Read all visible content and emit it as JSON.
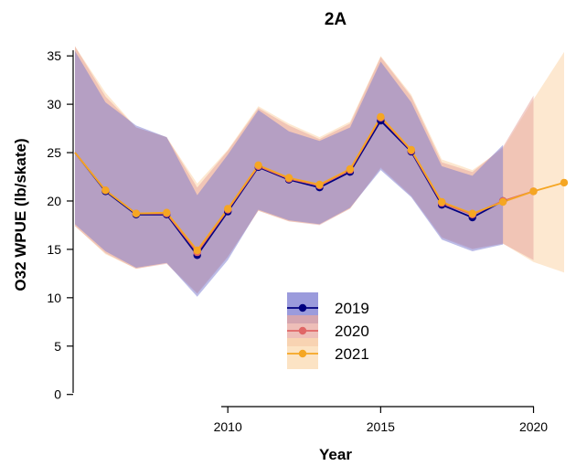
{
  "chart_data": {
    "type": "line",
    "title": "2A",
    "xlabel": "Year",
    "ylabel": "O32 WPUE (lb/skate)",
    "xlim": [
      2005,
      2021.3
    ],
    "ylim": [
      -0.5,
      37
    ],
    "x_ticks": [
      2010,
      2015,
      2020
    ],
    "y_ticks": [
      0,
      5,
      10,
      15,
      20,
      25,
      30,
      35
    ],
    "legend_position": "bottom-center",
    "grid": false,
    "series": [
      {
        "name": "2019",
        "line_color": "#000080",
        "band_color": "#7a7ad0",
        "points": [
          {
            "x": 2005,
            "y": 25.0,
            "lower": 17.6,
            "upper": 35.5
          },
          {
            "x": 2006,
            "y": 21.0,
            "lower": 14.8,
            "upper": 30.2
          },
          {
            "x": 2007,
            "y": 18.6,
            "lower": 13.1,
            "upper": 27.8
          },
          {
            "x": 2008,
            "y": 18.6,
            "lower": 13.6,
            "upper": 26.6
          },
          {
            "x": 2009,
            "y": 14.4,
            "lower": 10.1,
            "upper": 20.6
          },
          {
            "x": 2010,
            "y": 18.9,
            "lower": 13.9,
            "upper": 24.8
          },
          {
            "x": 2011,
            "y": 23.5,
            "lower": 19.1,
            "upper": 29.4
          },
          {
            "x": 2012,
            "y": 22.2,
            "lower": 18.0,
            "upper": 27.2
          },
          {
            "x": 2013,
            "y": 21.4,
            "lower": 17.6,
            "upper": 26.2
          },
          {
            "x": 2014,
            "y": 23.0,
            "lower": 19.3,
            "upper": 27.6
          },
          {
            "x": 2015,
            "y": 28.3,
            "lower": 23.2,
            "upper": 34.4
          },
          {
            "x": 2016,
            "y": 25.1,
            "lower": 20.4,
            "upper": 30.2
          },
          {
            "x": 2017,
            "y": 19.6,
            "lower": 16.0,
            "upper": 23.6
          },
          {
            "x": 2018,
            "y": 18.3,
            "lower": 14.8,
            "upper": 22.6
          },
          {
            "x": 2019,
            "y": 20.0,
            "lower": 15.5,
            "upper": 25.8
          }
        ]
      },
      {
        "name": "2020",
        "line_color": "#e06666",
        "band_color": "#e8a8a0",
        "points": [
          {
            "x": 2005,
            "y": 25.0,
            "lower": 17.4,
            "upper": 36.0
          },
          {
            "x": 2006,
            "y": 21.1,
            "lower": 14.6,
            "upper": 30.8
          },
          {
            "x": 2007,
            "y": 18.7,
            "lower": 13.0,
            "upper": 27.6
          },
          {
            "x": 2008,
            "y": 18.7,
            "lower": 13.5,
            "upper": 26.6
          },
          {
            "x": 2009,
            "y": 14.7,
            "lower": 10.4,
            "upper": 21.4
          },
          {
            "x": 2010,
            "y": 19.1,
            "lower": 14.2,
            "upper": 25.2
          },
          {
            "x": 2011,
            "y": 23.6,
            "lower": 19.0,
            "upper": 29.6
          },
          {
            "x": 2012,
            "y": 22.3,
            "lower": 17.9,
            "upper": 27.8
          },
          {
            "x": 2013,
            "y": 21.6,
            "lower": 17.5,
            "upper": 26.4
          },
          {
            "x": 2014,
            "y": 23.2,
            "lower": 19.2,
            "upper": 28.0
          },
          {
            "x": 2015,
            "y": 28.6,
            "lower": 23.4,
            "upper": 34.9
          },
          {
            "x": 2016,
            "y": 25.2,
            "lower": 20.5,
            "upper": 30.8
          },
          {
            "x": 2017,
            "y": 19.8,
            "lower": 16.2,
            "upper": 24.0
          },
          {
            "x": 2018,
            "y": 18.6,
            "lower": 15.0,
            "upper": 23.0
          },
          {
            "x": 2019,
            "y": 20.0,
            "lower": 15.6,
            "upper": 25.6
          },
          {
            "x": 2020,
            "y": 21.0,
            "lower": 13.9,
            "upper": 30.9
          }
        ]
      },
      {
        "name": "2021",
        "line_color": "#f5a623",
        "band_color": "#fbd9b0",
        "points": [
          {
            "x": 2005,
            "y": 25.0,
            "lower": 17.4,
            "upper": 36.0
          },
          {
            "x": 2006,
            "y": 21.1,
            "lower": 14.5,
            "upper": 31.2
          },
          {
            "x": 2007,
            "y": 18.7,
            "lower": 13.0,
            "upper": 27.6
          },
          {
            "x": 2008,
            "y": 18.8,
            "lower": 13.6,
            "upper": 26.6
          },
          {
            "x": 2009,
            "y": 14.9,
            "lower": 10.5,
            "upper": 21.8
          },
          {
            "x": 2010,
            "y": 19.2,
            "lower": 14.3,
            "upper": 25.3
          },
          {
            "x": 2011,
            "y": 23.7,
            "lower": 19.0,
            "upper": 29.8
          },
          {
            "x": 2012,
            "y": 22.4,
            "lower": 17.9,
            "upper": 28.0
          },
          {
            "x": 2013,
            "y": 21.7,
            "lower": 17.6,
            "upper": 26.6
          },
          {
            "x": 2014,
            "y": 23.3,
            "lower": 19.2,
            "upper": 28.2
          },
          {
            "x": 2015,
            "y": 28.7,
            "lower": 23.5,
            "upper": 35.0
          },
          {
            "x": 2016,
            "y": 25.3,
            "lower": 20.6,
            "upper": 31.0
          },
          {
            "x": 2017,
            "y": 19.9,
            "lower": 16.3,
            "upper": 24.3
          },
          {
            "x": 2018,
            "y": 18.7,
            "lower": 15.1,
            "upper": 23.2
          },
          {
            "x": 2019,
            "y": 19.9,
            "lower": 15.6,
            "upper": 25.4
          },
          {
            "x": 2020,
            "y": 21.0,
            "lower": 13.7,
            "upper": 30.5
          },
          {
            "x": 2021,
            "y": 21.9,
            "lower": 12.6,
            "upper": 35.4
          }
        ]
      }
    ]
  }
}
